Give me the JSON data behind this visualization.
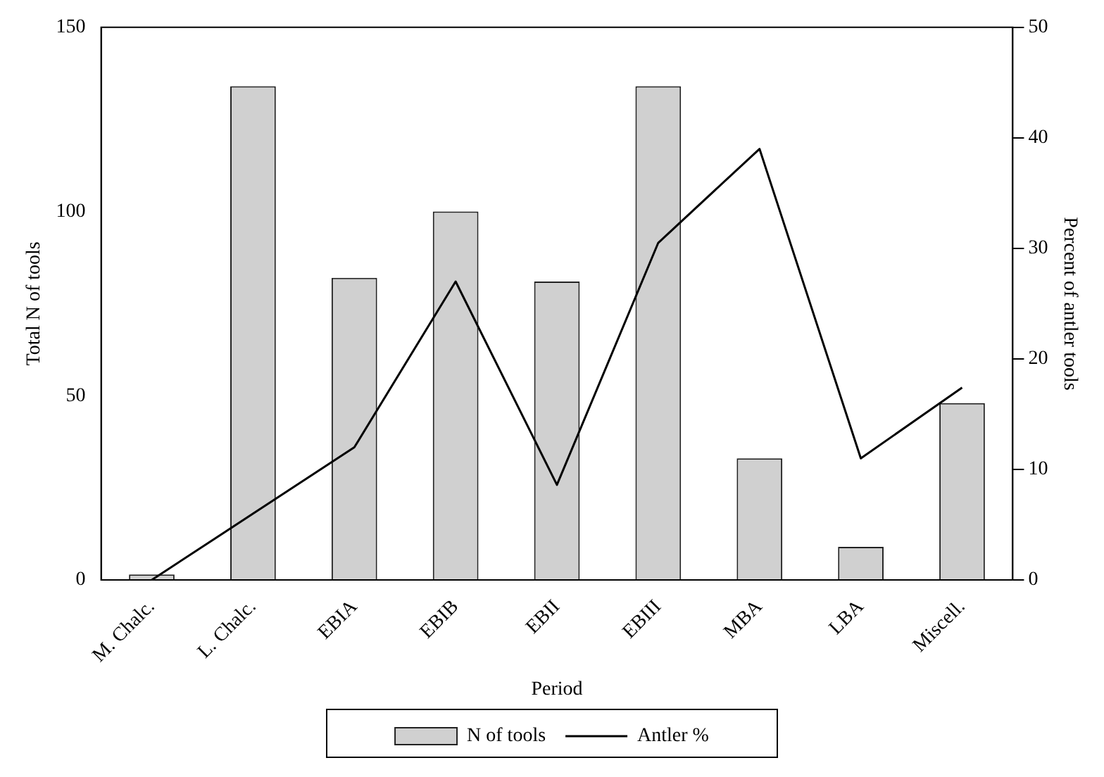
{
  "chart_data": {
    "type": "bar",
    "xlabel": "Period",
    "ylabel": "Total N of tools",
    "y2label": "Percent of antler tools",
    "categories": [
      "M. Chalc.",
      "L. Chalc.",
      "EBIA",
      "EBIB",
      "EBII",
      "EBIII",
      "MBA",
      "LBA",
      "Miscell."
    ],
    "series": [
      {
        "name": "N of tools",
        "color": "#d0d0d0",
        "values": [
          1.5,
          134,
          82,
          100,
          81,
          134,
          33,
          9,
          48
        ]
      },
      {
        "name": "Antler %",
        "type": "line",
        "axis": "y2",
        "color": "#000000",
        "values": [
          0,
          6,
          12,
          27,
          8.6,
          30.5,
          39,
          11,
          17.4
        ]
      }
    ],
    "ylim": [
      0,
      150
    ],
    "yticks": [
      0,
      50,
      100,
      150
    ],
    "y2lim": [
      0,
      50
    ],
    "y2ticks": [
      0,
      10,
      20,
      30,
      40,
      50
    ],
    "grid": false,
    "legend": "bottom",
    "marker": "none",
    "line_style": "solid"
  }
}
